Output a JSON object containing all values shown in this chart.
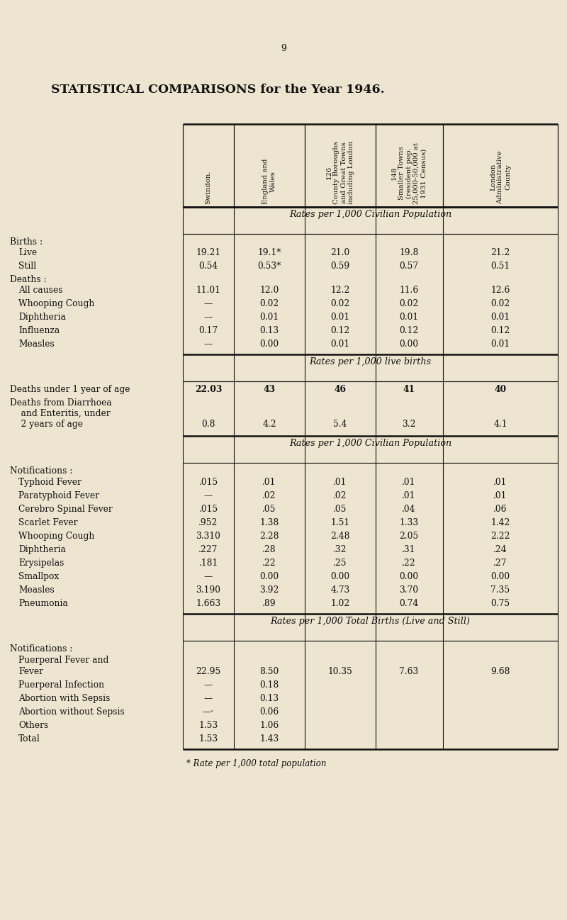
{
  "title": "STATISTICAL COMPARISONS for the Year 1946.",
  "page_number": "9",
  "bg": "#ede5d0",
  "col_headers": [
    "Swindon.",
    "England and\nWales",
    "126\nCounty Boroughs\nand Great Towns\nincluding London",
    "148\nSmaller Towns\n(resident pop.\n25,000-50,000 at\n1931 Census)",
    "London\nAdministrative\nCounty"
  ],
  "s1_header": "Rates per 1,000 Civilian Population",
  "s1_rows": [
    {
      "lbl": "Births :",
      "v": [
        "",
        "",
        "",
        "",
        ""
      ],
      "hdr": true
    },
    {
      "lbl": "  Live",
      "v": [
        "19.21",
        "19.1*",
        "21.0",
        "19.8",
        "21.2"
      ],
      "dots": true
    },
    {
      "lbl": "  Still",
      "v": [
        "0.54",
        "0.53*",
        "0.59",
        "0.57",
        "0.51"
      ],
      "dots": true
    },
    {
      "lbl": "Deaths :",
      "v": [
        "",
        "",
        "",
        "",
        ""
      ],
      "hdr": true
    },
    {
      "lbl": "  All causes",
      "v": [
        "11.01",
        "12.0",
        "12.2",
        "11.6",
        "12.6"
      ],
      "dots": true
    },
    {
      "lbl": "  Whooping Cough",
      "v": [
        "—",
        "0.02",
        "0.02",
        "0.02",
        "0.02"
      ],
      "dots": true
    },
    {
      "lbl": "  Diphtheria",
      "v": [
        "—",
        "0.01",
        "0.01",
        "0.01",
        "0.01"
      ],
      "dots": true
    },
    {
      "lbl": "  Influenza",
      "v": [
        "0.17",
        "0.13",
        "0.12",
        "0.12",
        "0.12"
      ],
      "dots": true
    },
    {
      "lbl": "  Measles",
      "v": [
        "—",
        "0.00",
        "0.01",
        "0.00",
        "0.01"
      ],
      "dots": true
    }
  ],
  "s2_header": "Rates per 1,000 live births",
  "s2_rows": [
    {
      "lbl": "Deaths under 1 year of age",
      "v": [
        "22.03",
        "43",
        "46",
        "41",
        "40"
      ],
      "bold": true
    },
    {
      "lbl": "Deaths from Diarrhoea\n    and Enteritis, under\n    2 years of age",
      "v": [
        "0.8",
        "4.2",
        "5.4",
        "3.2",
        "4.1"
      ],
      "dots": true,
      "multiline": true
    }
  ],
  "s3_header": "Rates per 1,000 Civilian Population",
  "s3_rows": [
    {
      "lbl": "  Typhoid Fever",
      "v": [
        ".015",
        ".01",
        ".01",
        ".01",
        ".01"
      ],
      "dots": true
    },
    {
      "lbl": "  Paratyphoid Fever",
      "v": [
        "—",
        ".02",
        ".02",
        ".01",
        ".01"
      ],
      "dots": true
    },
    {
      "lbl": "  Cerebro Spinal Fever",
      "v": [
        ".015",
        ".05",
        ".05",
        ".04",
        ".06"
      ],
      "dots": true
    },
    {
      "lbl": "  Scarlet Fever",
      "v": [
        ".952",
        "1.38",
        "1.51",
        "1.33",
        "1.42"
      ],
      "dots": true
    },
    {
      "lbl": "  Whooping Cough",
      "v": [
        "3.310",
        "2.28",
        "2.48",
        "2.05",
        "2.22"
      ],
      "dots": true
    },
    {
      "lbl": "  Diphtheria",
      "v": [
        ".227",
        ".28",
        ".32",
        ".31",
        ".24"
      ],
      "dots": true
    },
    {
      "lbl": "  Erysipelas",
      "v": [
        ".181",
        ".22",
        ".25",
        ".22",
        ".27"
      ],
      "dots": true
    },
    {
      "lbl": "  Smallpox",
      "v": [
        "—",
        "0.00",
        "0.00",
        "0.00",
        "0.00"
      ],
      "dots": true
    },
    {
      "lbl": "  Measles",
      "v": [
        "3.190",
        "3.92",
        "4.73",
        "3.70",
        "7.35"
      ],
      "dots": true
    },
    {
      "lbl": "  Pneumonia",
      "v": [
        "1.663",
        ".89",
        "1.02",
        "0.74",
        "0.75"
      ],
      "dots": true
    }
  ],
  "s4_header": "Rates per 1,000 Total Births (Live and Still)",
  "s4_rows": [
    {
      "lbl": "  Fever",
      "v": [
        "22.95",
        "8.50",
        "10.35",
        "7.63",
        "9.68"
      ]
    },
    {
      "lbl": "  Puerperal Infection",
      "v": [
        "—",
        "0.18",
        "",
        "",
        ""
      ]
    },
    {
      "lbl": "  Abortion with Sepsis",
      "v": [
        "—",
        "0.13",
        "",
        "",
        ""
      ]
    },
    {
      "lbl": "  Abortion without Sepsis",
      "v": [
        "—·",
        "0.06",
        "",
        "",
        ""
      ]
    },
    {
      "lbl": "  Others",
      "v": [
        "1.53",
        "1.06",
        "",
        "",
        ""
      ]
    },
    {
      "lbl": "  Total",
      "v": [
        "1.53",
        "1.43",
        "",
        "",
        ""
      ]
    }
  ],
  "footnote": "* Rate per 1,000 total population"
}
